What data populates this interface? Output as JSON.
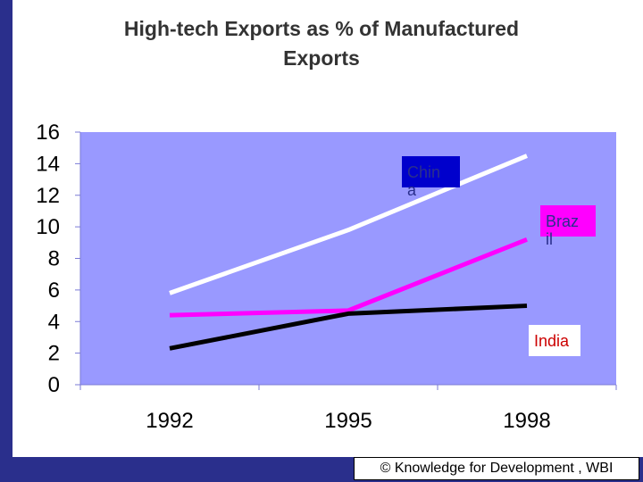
{
  "colors": {
    "frame": "#2a2f8c",
    "plot_bg": "#9999ff",
    "grid": "#7a7ad6",
    "china": "#ffffff",
    "brazil": "#ff00ff",
    "india": "#000000"
  },
  "footer": {
    "text": "© Knowledge for Development , WBI"
  },
  "chart_data": {
    "type": "line",
    "title": [
      "High-tech Exports as % of Manufactured",
      "Exports"
    ],
    "categories": [
      "1992",
      "1995",
      "1998"
    ],
    "ylim": [
      0,
      16
    ],
    "yticks": [
      "0",
      "2",
      "4",
      "6",
      "8",
      "10",
      "12",
      "14",
      "16"
    ],
    "grid": false,
    "series": [
      {
        "name": "Chin a",
        "label_lines": [
          "Chin",
          "a"
        ],
        "values": [
          5.8,
          9.8,
          14.5
        ],
        "color": "#ffffff",
        "label_bg": "#0000cc",
        "label_fg": "#2a2f8c"
      },
      {
        "name": "Braz il",
        "label_lines": [
          "Braz",
          "il"
        ],
        "values": [
          4.4,
          4.7,
          9.2
        ],
        "color": "#ff00ff",
        "label_bg": "#ff00ff",
        "label_fg": "#2a2f8c"
      },
      {
        "name": "India",
        "label_lines": [
          "India"
        ],
        "values": [
          2.3,
          4.5,
          5.0
        ],
        "color": "#000000",
        "label_bg": "#ffffff",
        "label_fg": "#cc0000"
      }
    ]
  }
}
